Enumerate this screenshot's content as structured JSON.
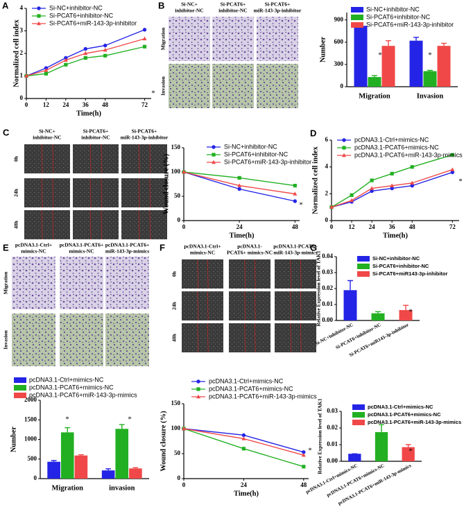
{
  "chart_data": [
    {
      "panel": "A",
      "type": "line",
      "x": [
        0,
        12,
        24,
        36,
        48,
        72
      ],
      "xlim": [
        0,
        76
      ],
      "xticks": [
        0,
        12,
        24,
        36,
        48,
        72
      ],
      "ylim": [
        0,
        4
      ],
      "yticks": [
        0,
        1,
        2,
        3,
        4
      ],
      "xlabel": "Time(h)",
      "ylabel": "Normalized cell index",
      "series": [
        {
          "name": "Si-NC+inhibitor-NC",
          "color": "#2424e6",
          "marker": "circle",
          "values": [
            1,
            1.35,
            1.8,
            2.2,
            2.35,
            3.05
          ]
        },
        {
          "name": "Si-PCAT6+inhibitor-NC",
          "color": "#22b022",
          "marker": "square",
          "values": [
            1,
            1.1,
            1.5,
            1.8,
            1.9,
            2.3
          ]
        },
        {
          "name": "Si-PCAT6+miR-143-3p-inhibitor",
          "color": "#f04848",
          "marker": "triangle",
          "values": [
            1,
            1.25,
            1.7,
            2.0,
            2.15,
            2.65
          ]
        }
      ],
      "annotations": [
        "*"
      ]
    },
    {
      "type": "bar",
      "categories": [
        "Migration",
        "Invasion"
      ],
      "ylim": [
        0,
        1000
      ],
      "yticks": [
        0,
        300,
        600,
        900
      ],
      "ylabel": "Number",
      "series": [
        {
          "name": "Si-NC+inhibitor-NC",
          "color": "#2424e6",
          "values": [
            820,
            620
          ],
          "errors": [
            10,
            45
          ]
        },
        {
          "name": "Si-PCAT6+inhibitor-NC",
          "color": "#22b022",
          "values": [
            130,
            210
          ],
          "errors": [
            20,
            10
          ]
        },
        {
          "name": "Si-PCAT6+miR-143-3p-inhibitor",
          "color": "#f04848",
          "values": [
            550,
            550
          ],
          "errors": [
            70,
            35
          ]
        }
      ],
      "annotations": [
        "*",
        "*"
      ]
    },
    {
      "type": "line",
      "x": [
        0,
        24,
        48
      ],
      "xlim": [
        0,
        50
      ],
      "xticks": [
        0,
        24,
        48
      ],
      "ylim": [
        0,
        150
      ],
      "yticks": [
        0,
        50,
        100,
        150
      ],
      "xlabel": "Time(h)",
      "ylabel": "Wound closure (%)",
      "series": [
        {
          "name": "Si-NC+inhibitor-NC",
          "color": "#2424e6",
          "marker": "circle",
          "values": [
            100,
            65,
            40
          ]
        },
        {
          "name": "Si-PCAT6+inhibitor-NC",
          "color": "#22b022",
          "marker": "square",
          "values": [
            100,
            88,
            72
          ]
        },
        {
          "name": "Si-PCAT6+miR-143-3p-inhibitor",
          "color": "#f04848",
          "marker": "triangle",
          "values": [
            100,
            72,
            55
          ]
        }
      ],
      "annotations": [
        "*"
      ]
    },
    {
      "panel": "D",
      "type": "line",
      "x": [
        0,
        12,
        24,
        36,
        48,
        72
      ],
      "xlim": [
        0,
        76
      ],
      "xticks": [
        0,
        12,
        24,
        36,
        48,
        72
      ],
      "ylim": [
        0,
        6
      ],
      "yticks": [
        0,
        2,
        4,
        6
      ],
      "xlabel": "Time(h)",
      "ylabel": "Normalized cell index",
      "series": [
        {
          "name": "pcDNA3.1-Ctrl+mimics-NC",
          "color": "#2424e6",
          "marker": "circle",
          "values": [
            1,
            1.4,
            2.2,
            2.4,
            2.6,
            3.6
          ]
        },
        {
          "name": "pcDNA3.1-PCAT6+mimics-NC",
          "color": "#22b022",
          "marker": "square",
          "values": [
            1,
            1.9,
            3.0,
            3.5,
            4.0,
            4.9
          ]
        },
        {
          "name": "pcDNA3.1-PCAT6+miR-143-3p-mimics",
          "color": "#f04848",
          "marker": "triangle",
          "values": [
            1,
            1.5,
            2.4,
            2.6,
            2.8,
            3.8
          ]
        }
      ],
      "annotations": [
        "*"
      ]
    },
    {
      "type": "bar",
      "categories": [
        "Migration",
        "invasion"
      ],
      "ylim": [
        0,
        2000
      ],
      "yticks": [
        0,
        500,
        1000,
        1500,
        2000
      ],
      "ylabel": "Number",
      "series": [
        {
          "name": "pcDNA3.1-Ctrl+mimics-NC",
          "color": "#2424e6",
          "values": [
            430,
            210
          ],
          "errors": [
            30,
            40
          ]
        },
        {
          "name": "pcDNA3.1-PCAT6+mimics-NC",
          "color": "#22b022",
          "values": [
            1180,
            1270
          ],
          "errors": [
            120,
            110
          ]
        },
        {
          "name": "pcDNA3.1-PCAT6+miR-143-3p-mimics",
          "color": "#f04848",
          "values": [
            590,
            260
          ],
          "errors": [
            20,
            20
          ]
        }
      ],
      "annotations": [
        "*",
        "*"
      ]
    },
    {
      "type": "line",
      "x": [
        0,
        24,
        48
      ],
      "xlim": [
        0,
        50
      ],
      "xticks": [
        0,
        24,
        48
      ],
      "ylim": [
        0,
        150
      ],
      "yticks": [
        0,
        50,
        100,
        150
      ],
      "xlabel": "Time(h)",
      "ylabel": "Wound closure (%)",
      "series": [
        {
          "name": "pcDNA3.1-Ctrl+mimics-NC",
          "color": "#2424e6",
          "marker": "circle",
          "values": [
            100,
            87,
            53
          ]
        },
        {
          "name": "pcDNA3.1-PCAT6+mimics-NC",
          "color": "#22b022",
          "marker": "square",
          "values": [
            100,
            60,
            24
          ]
        },
        {
          "name": "pcDNA3.1-PCAT6+miR-143-3p-mimics",
          "color": "#f04848",
          "marker": "triangle",
          "values": [
            100,
            80,
            47
          ]
        }
      ],
      "annotations": [
        "*"
      ]
    },
    {
      "panel": "G",
      "type": "bar",
      "categories": [
        "Si-NC+inhibitor-NC",
        "Si-PCAT6+inhibitor-NC",
        "Si-PCAT6+miR143-3p-inhibitor"
      ],
      "ylim": [
        0,
        0.04
      ],
      "yticks": [
        {
          "value": 0,
          "label": "0.00"
        },
        {
          "value": 0.01,
          "label": "0.01"
        },
        {
          "value": 0.02,
          "label": "0.02"
        },
        {
          "value": 0.03,
          "label": "0.03"
        },
        {
          "value": 0.04,
          "label": "0.04"
        }
      ],
      "ylabel": "Relative Expression level of TAK1",
      "series": [
        {
          "name": "Si-NC+inhibitor-NC",
          "color": "#2424e6",
          "values": [
            0.019,
            null,
            null
          ],
          "errors": [
            0.006,
            null,
            null
          ]
        },
        {
          "name": "Si-PCAT6+inhibitor-NC",
          "color": "#22b022",
          "values": [
            null,
            0.0045,
            null
          ],
          "errors": [
            null,
            0.001,
            null
          ]
        },
        {
          "name": "Si-PCAT6+miR143-3p-inhibitor",
          "color": "#f04848",
          "values": [
            null,
            null,
            0.0065
          ],
          "errors": [
            null,
            null,
            0.003
          ]
        }
      ],
      "annotations": [
        "*"
      ]
    },
    {
      "type": "bar",
      "categories": [
        "pcDNA3.1-Ctrl+mimics-NC",
        "pcDNA3.1-PCAT6+mimics-NC",
        "pcDNA3.1-PCAT6+miR-143-3p-mimics"
      ],
      "ylim": [
        0,
        0.03
      ],
      "yticks": [
        {
          "value": 0,
          "label": "0.00"
        },
        {
          "value": 0.01,
          "label": "0.01"
        },
        {
          "value": 0.02,
          "label": "0.02"
        },
        {
          "value": 0.03,
          "label": "0.03"
        }
      ],
      "ylabel": "Relative Expression level of TAK1",
      "series": [
        {
          "name": "pcDNA3.1-Ctrl+mimics-NC",
          "color": "#2424e6",
          "values": [
            0.0045,
            null,
            null
          ],
          "errors": [
            0,
            null,
            null
          ]
        },
        {
          "name": "pcDNA3.1-PCAT6+mimics-NC",
          "color": "#22b022",
          "values": [
            null,
            0.0175,
            null
          ],
          "errors": [
            null,
            0.0045,
            null
          ]
        },
        {
          "name": "pcDNA3.1-PCAT6+miR-143-3p-mimics",
          "color": "#f04848",
          "values": [
            null,
            null,
            0.0085
          ],
          "errors": [
            null,
            null,
            0.0015
          ]
        }
      ],
      "annotations": [
        "*"
      ]
    }
  ],
  "image_grids": [
    {
      "panel": "B",
      "columns": [
        [
          "Si-NC+",
          "inhibitor-NC"
        ],
        [
          "Si-PCAT6+",
          "inhibitor-NC"
        ],
        [
          "Si-PCAT6+",
          "miR-143-3p-inhibitor"
        ]
      ],
      "rows": [
        "Migration",
        "Invasion"
      ]
    },
    {
      "panel": "C",
      "columns": [
        [
          "Si-NC+",
          "inhibitor-NC"
        ],
        [
          "Si-PCAT6+",
          "inhibitor-NC"
        ],
        [
          "Si-PCAT6+",
          "miR-143-3p-inhibitor"
        ]
      ],
      "rows": [
        "0h",
        "24h",
        "48h"
      ]
    },
    {
      "panel": "E",
      "columns": [
        [
          "pcDNA3.1-Ctrl+",
          "mimics-NC"
        ],
        [
          "pcDNA3.1-PCAT6+",
          "mimics-NC"
        ],
        [
          "pcDNA3.1-PCAT6+",
          "miR-143-3p-mimics"
        ]
      ],
      "rows": [
        "Migration",
        "Invasion"
      ]
    },
    {
      "panel": "F",
      "columns": [
        [
          "pcDNA3.1-Ctrl+",
          "mimics-NC"
        ],
        [
          "pcDNA3.1-",
          "PCAT6+ mimics-NC"
        ],
        [
          "pcDNA3.1-PCAT6+",
          "miR-143-3p-mimics"
        ]
      ],
      "rows": [
        "0h",
        "24h",
        "48h"
      ]
    }
  ]
}
